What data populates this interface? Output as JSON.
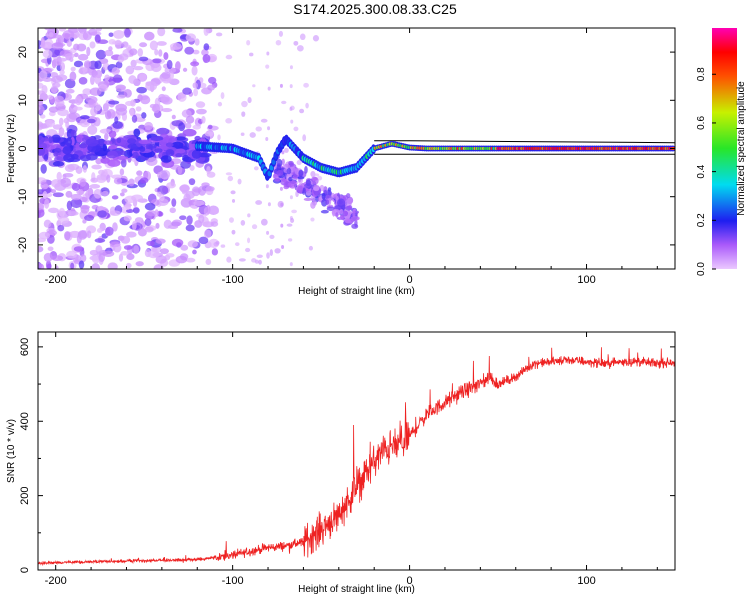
{
  "title": "S174.2025.300.08.33.C25",
  "chart_data": [
    {
      "type": "heatmap",
      "xlabel": "Height of straight line (km)",
      "ylabel": "Frequency (Hz)",
      "xlim": [
        -210,
        150
      ],
      "ylim": [
        -25,
        25
      ],
      "xticks": [
        -200,
        -100,
        0,
        100
      ],
      "yticks": [
        -20,
        -10,
        0,
        10,
        20
      ],
      "colorbar": {
        "label": "Normalized spectral amplitude",
        "range": [
          0,
          0.99
        ],
        "ticks": [
          0.0,
          0.2,
          0.4,
          0.6,
          0.8
        ]
      },
      "ridge": {
        "description_points_x": [
          -120,
          -100,
          -85,
          -80,
          -75,
          -70,
          -60,
          -50,
          -40,
          -30,
          -20,
          -10,
          0,
          10,
          20,
          40,
          60,
          80,
          100,
          120,
          150
        ],
        "frequency_y": [
          0.5,
          0,
          -2,
          -6,
          -1,
          2,
          -2,
          -4,
          -5,
          -4,
          0,
          1,
          0.2,
          0,
          0,
          0,
          0,
          0,
          0,
          0,
          0
        ]
      }
    },
    {
      "type": "line",
      "xlabel": "Height of straight line (km)",
      "ylabel": "SNR (10 * v/v)",
      "xlim": [
        -210,
        150
      ],
      "ylim": [
        0,
        640
      ],
      "xticks": [
        -200,
        -100,
        0,
        100
      ],
      "yticks": [
        0,
        200,
        400,
        600
      ],
      "series": [
        {
          "name": "SNR",
          "color": "#ee2222",
          "x": [
            -210,
            -180,
            -150,
            -120,
            -100,
            -90,
            -80,
            -70,
            -60,
            -50,
            -40,
            -30,
            -25,
            -20,
            -15,
            -10,
            -5,
            0,
            10,
            20,
            30,
            40,
            45,
            50,
            60,
            70,
            80,
            90,
            100,
            110,
            120,
            130,
            140,
            150
          ],
          "y": [
            18,
            22,
            25,
            28,
            40,
            50,
            60,
            65,
            75,
            110,
            150,
            220,
            260,
            290,
            320,
            330,
            340,
            360,
            420,
            450,
            480,
            500,
            520,
            500,
            520,
            555,
            560,
            565,
            560,
            555,
            560,
            560,
            555,
            560
          ]
        }
      ]
    }
  ]
}
